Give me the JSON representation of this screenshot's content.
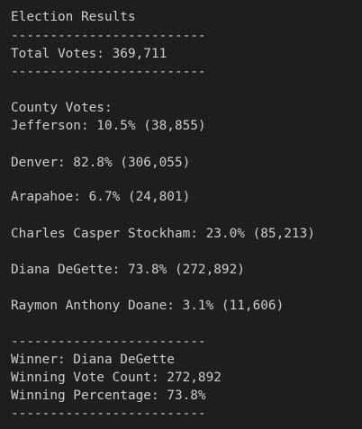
{
  "report": {
    "title": "Election Results",
    "divider": "-------------------------",
    "total_votes": "Total Votes: 369,711",
    "county_heading": "County Votes:",
    "counties": [
      "Jefferson: 10.5% (38,855)",
      "Denver: 82.8% (306,055)",
      "Arapahoe: 6.7% (24,801)"
    ],
    "candidates": [
      "Charles Casper Stockham: 23.0% (85,213)",
      "Diana DeGette: 73.8% (272,892)",
      "Raymon Anthony Doane: 3.1% (11,606)"
    ],
    "winner": "Winner: Diana DeGette",
    "winning_vote_count": "Winning Vote Count: 272,892",
    "winning_percentage": "Winning Percentage: 73.8%"
  }
}
